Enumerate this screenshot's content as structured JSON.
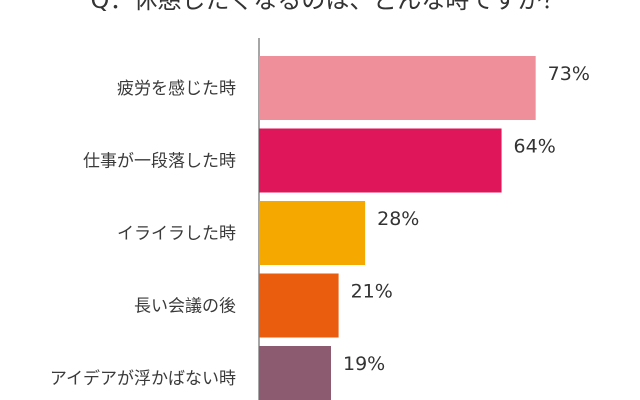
{
  "chart_data": {
    "type": "bar",
    "orientation": "horizontal",
    "title": "Q：休憩したくなるのは、どんな時ですか？",
    "categories": [
      "疲労を感じた時",
      "仕事が一段落した時",
      "イライラした時",
      "長い会議の後",
      "アイデアが浮かばない時"
    ],
    "values": [
      73,
      64,
      28,
      21,
      19
    ],
    "value_labels": [
      "73%",
      "64%",
      "28%",
      "21%",
      "19%"
    ],
    "unit": "%",
    "xlim": [
      0,
      100
    ],
    "bar_colors": [
      "#ef8f99",
      "#e0165a",
      "#f5a900",
      "#ea5d0e",
      "#8d5b70"
    ],
    "axis_color": "#888888",
    "gridlines": false,
    "legend": "none"
  }
}
